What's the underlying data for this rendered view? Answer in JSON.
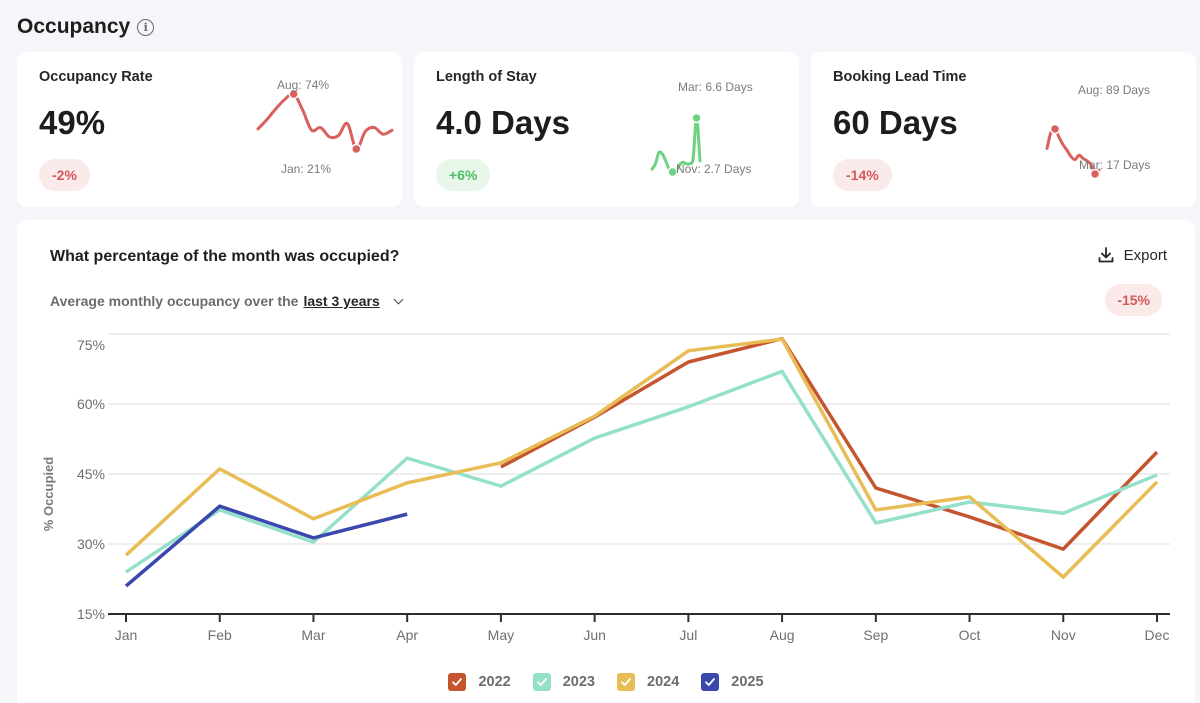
{
  "page": {
    "title": "Occupancy",
    "info_icon": "info-circle-icon",
    "background": "#f5f6fa"
  },
  "kpis": [
    {
      "label": "Occupancy Rate",
      "value": "49%",
      "change": "-2%",
      "trend": "negative",
      "color": "#d9605c",
      "max_label": "Aug: 74%",
      "min_label": "Jan: 21%",
      "sparkline": [
        48,
        55,
        63,
        70,
        74,
        62,
        47,
        49,
        42,
        43,
        52,
        33,
        46,
        49,
        44,
        47
      ]
    },
    {
      "label": "Length of Stay",
      "value": "4.0 Days",
      "change": "+6%",
      "trend": "positive",
      "color": "#6fd282",
      "max_label": "Mar: 6.6 Days",
      "min_label": "Nov: 2.7 Days",
      "sparkline": [
        2.9,
        3.3,
        4.1,
        4.0,
        3.5,
        2.9,
        2.7,
        2.7,
        3.2,
        3.4,
        3.3,
        3.3,
        3.7,
        6.6,
        3.5
      ]
    },
    {
      "label": "Booking Lead Time",
      "value": "60 Days",
      "change": "-14%",
      "trend": "negative",
      "color": "#d9605c",
      "max_label": "Aug: 89 Days",
      "min_label": "Mar: 17 Days",
      "sparkline": [
        58,
        84,
        89,
        76,
        64,
        55,
        45,
        40,
        47,
        42,
        38,
        32,
        17,
        23
      ]
    }
  ],
  "chart_section": {
    "title": "What percentage of the month was occupied?",
    "subtitle_prefix": "Average monthly occupancy over the",
    "range_selected": "last 3 years",
    "export_label": "Export",
    "change_badge": "-15%"
  },
  "chart_data": {
    "type": "line",
    "title": "What percentage of the month was occupied?",
    "xlabel": "",
    "ylabel": "% Occupied",
    "ylim": [
      15,
      75
    ],
    "yticks": [
      15,
      30,
      45,
      60,
      75
    ],
    "ytick_labels": [
      "15%",
      "30%",
      "45%",
      "60%",
      "75%"
    ],
    "grid": true,
    "legend_position": "bottom-center",
    "categories": [
      "Jan",
      "Feb",
      "Mar",
      "Apr",
      "May",
      "Jun",
      "Jul",
      "Aug",
      "Sep",
      "Oct",
      "Nov",
      "Dec"
    ],
    "series": [
      {
        "name": "2022",
        "color": "#c4552e",
        "checked": true,
        "values": [
          null,
          null,
          null,
          null,
          46.5,
          57.2,
          69.0,
          74.0,
          42.0,
          35.8,
          28.9,
          49.7
        ]
      },
      {
        "name": "2023",
        "color": "#94e0cb",
        "checked": true,
        "values": [
          24.0,
          37.3,
          30.4,
          48.4,
          42.4,
          52.7,
          59.4,
          67.0,
          34.5,
          39.0,
          36.6,
          44.8
        ]
      },
      {
        "name": "2024",
        "color": "#e9bd55",
        "checked": true,
        "values": [
          27.6,
          46.1,
          35.4,
          43.1,
          47.4,
          57.4,
          71.4,
          73.9,
          37.3,
          40.1,
          22.9,
          43.3
        ]
      },
      {
        "name": "2025",
        "color": "#3a47ad",
        "checked": true,
        "values": [
          21.0,
          38.1,
          31.3,
          36.4,
          null,
          null,
          null,
          null,
          null,
          null,
          null,
          null
        ]
      }
    ]
  }
}
